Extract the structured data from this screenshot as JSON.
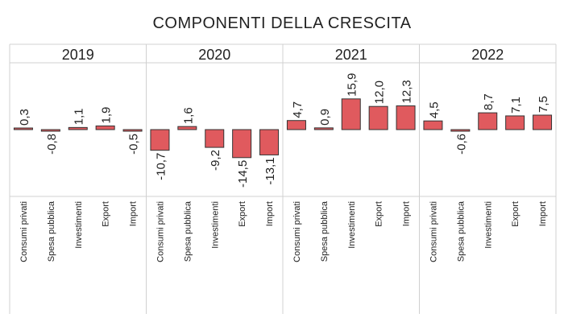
{
  "chart_data": {
    "type": "bar",
    "title": "COMPONENTI DELLA CRESCITA",
    "categories": [
      "Consumi privati",
      "Spesa pubblica",
      "Investimenti",
      "Export",
      "Import"
    ],
    "panels": [
      {
        "year": "2019",
        "values": [
          0.3,
          -0.8,
          1.1,
          1.9,
          -0.5
        ],
        "labels": [
          "0,3",
          "-0,8",
          "1,1",
          "1,9",
          "-0,5"
        ]
      },
      {
        "year": "2020",
        "values": [
          -10.7,
          1.6,
          -9.2,
          -14.5,
          -13.1
        ],
        "labels": [
          "-10,7",
          "1,6",
          "-9,2",
          "-14,5",
          "-13,1"
        ]
      },
      {
        "year": "2021",
        "values": [
          4.7,
          0.9,
          15.9,
          12.0,
          12.3
        ],
        "labels": [
          "4,7",
          "0,9",
          "15,9",
          "12,0",
          "12,3"
        ]
      },
      {
        "year": "2022",
        "values": [
          4.5,
          -0.6,
          8.7,
          7.1,
          7.5
        ],
        "labels": [
          "4,5",
          "-0,6",
          "8,7",
          "7,1",
          "7,5"
        ]
      }
    ],
    "bar_color": "#e05a5e",
    "bar_stroke": "#333333",
    "grid": false
  }
}
